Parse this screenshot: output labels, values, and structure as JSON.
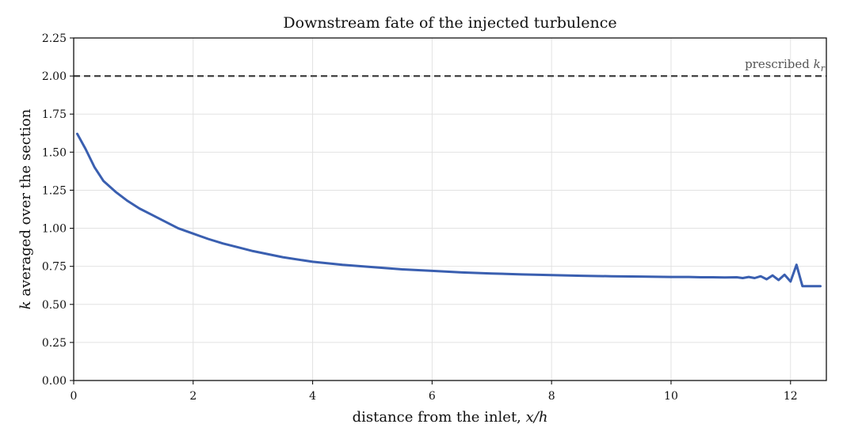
{
  "chart_data": {
    "type": "line",
    "title": "Downstream fate of the injected turbulence",
    "xlabel_text": "distance from the inlet, ",
    "xlabel_math": "x/h",
    "ylabel_math": "k",
    "ylabel_text": " averaged over the section",
    "xlim": [
      0,
      12.6
    ],
    "ylim": [
      0,
      2.25
    ],
    "xticks": [
      "0",
      "2",
      "4",
      "6",
      "8",
      "10",
      "12"
    ],
    "yticks": [
      "0.00",
      "0.25",
      "0.50",
      "0.75",
      "1.00",
      "1.25",
      "1.50",
      "1.75",
      "2.00",
      "2.25"
    ],
    "grid": true,
    "series": [
      {
        "color": "#3a5fb0",
        "x": [
          0.06,
          0.2,
          0.35,
          0.5,
          0.7,
          0.9,
          1.1,
          1.3,
          1.5,
          1.75,
          2.0,
          2.25,
          2.5,
          2.75,
          3.0,
          3.5,
          4.0,
          4.5,
          5.0,
          5.5,
          6.0,
          6.5,
          7.0,
          7.5,
          8.0,
          8.5,
          9.0,
          9.5,
          10.0,
          10.3,
          10.5,
          10.7,
          10.9,
          11.1,
          11.2,
          11.3,
          11.4,
          11.5,
          11.6,
          11.7,
          11.8,
          11.9,
          12.0,
          12.1,
          12.2,
          12.3,
          12.4,
          12.5
        ],
        "y": [
          1.62,
          1.52,
          1.4,
          1.31,
          1.24,
          1.18,
          1.13,
          1.09,
          1.05,
          1.0,
          0.965,
          0.93,
          0.9,
          0.875,
          0.85,
          0.81,
          0.78,
          0.76,
          0.745,
          0.73,
          0.72,
          0.71,
          0.703,
          0.697,
          0.692,
          0.688,
          0.685,
          0.683,
          0.68,
          0.68,
          0.678,
          0.678,
          0.677,
          0.678,
          0.673,
          0.68,
          0.673,
          0.685,
          0.665,
          0.69,
          0.66,
          0.695,
          0.65,
          0.76,
          0.62,
          0.62,
          0.62,
          0.62
        ]
      }
    ],
    "reference_line": {
      "y": 2.0,
      "style": "dashed",
      "color": "#444444",
      "label_text": "prescribed ",
      "label_math": "k",
      "label_sub": "r"
    }
  }
}
